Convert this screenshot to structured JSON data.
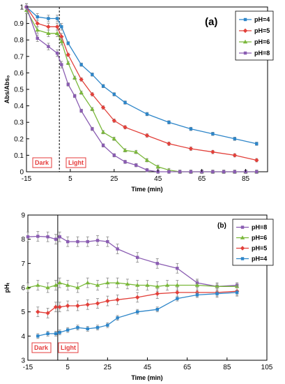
{
  "chart_data": [
    {
      "panel": "(a)",
      "type": "line",
      "xlabel": "Time (min)",
      "ylabel": "Abs/Abs₀",
      "xlim": [
        -15,
        95
      ],
      "ylim": [
        0,
        1
      ],
      "x_ticks": [
        "-15",
        "5",
        "25",
        "45",
        "65",
        "85"
      ],
      "y_ticks": [
        "0",
        "0.1",
        "0.2",
        "0.3",
        "0.4",
        "0.5",
        "0.6",
        "0.7",
        "0.8",
        "0.9",
        "1"
      ],
      "grid": false,
      "legend_position": "top-right",
      "light_on_at": 0,
      "regions": {
        "dark": "Dark",
        "light": "Light"
      },
      "series": [
        {
          "name": "pH=4",
          "color": "#2e86c9",
          "marker": "square",
          "x": [
            -15,
            -10,
            -5,
            -1,
            1,
            4,
            10,
            15,
            20,
            25,
            30,
            40,
            50,
            60,
            70,
            80,
            90
          ],
          "y": [
            1.0,
            0.94,
            0.93,
            0.93,
            0.88,
            0.78,
            0.65,
            0.59,
            0.52,
            0.47,
            0.42,
            0.35,
            0.3,
            0.26,
            0.23,
            0.2,
            0.17
          ],
          "err": [
            0.02,
            0.02,
            0.02,
            0.02,
            0.02,
            0.01,
            0.01,
            0.01,
            0.01,
            0.01,
            0.01,
            0.01,
            0.01,
            0.01,
            0.01,
            0.01,
            0.01
          ]
        },
        {
          "name": "pH=5",
          "color": "#e2403a",
          "marker": "diamond",
          "x": [
            -15,
            -10,
            -5,
            -1,
            1,
            4,
            10,
            15,
            20,
            25,
            30,
            40,
            50,
            60,
            70,
            80,
            90
          ],
          "y": [
            1.0,
            0.9,
            0.88,
            0.88,
            0.82,
            0.71,
            0.56,
            0.47,
            0.39,
            0.31,
            0.27,
            0.22,
            0.17,
            0.14,
            0.12,
            0.1,
            0.07
          ],
          "err": [
            0.02,
            0.02,
            0.02,
            0.02,
            0.02,
            0.01,
            0.01,
            0.01,
            0.01,
            0.01,
            0.01,
            0.01,
            0.01,
            0.01,
            0.01,
            0.01,
            0.01
          ]
        },
        {
          "name": "pH=6",
          "color": "#7ab83a",
          "marker": "triangle",
          "x": [
            -15,
            -10,
            -5,
            -1,
            1,
            4,
            7,
            10,
            15,
            20,
            25,
            30,
            35,
            40,
            45,
            50,
            55,
            60,
            65,
            70,
            75,
            80,
            85,
            90
          ],
          "y": [
            0.98,
            0.86,
            0.84,
            0.84,
            0.79,
            0.66,
            0.57,
            0.48,
            0.38,
            0.24,
            0.2,
            0.13,
            0.12,
            0.07,
            0.03,
            0.01,
            0.0,
            0.0,
            0.0,
            0.0,
            0.0,
            0.0,
            0.0,
            0.0
          ],
          "err": [
            0.02,
            0.02,
            0.02,
            0.02,
            0.02,
            0.01,
            0.01,
            0.01,
            0.01,
            0.01,
            0.01,
            0.01,
            0.01,
            0.01,
            0.01,
            0.01,
            0.01,
            0.01,
            0.01,
            0.01,
            0.01,
            0.01,
            0.01,
            0.01
          ]
        },
        {
          "name": "pH=8",
          "color": "#8a5cb2",
          "marker": "square",
          "x": [
            -15,
            -10,
            -5,
            -1,
            1,
            4,
            7,
            10,
            15,
            20,
            25,
            30,
            35,
            40,
            45,
            50,
            55,
            60,
            65,
            70,
            75,
            80,
            85,
            90
          ],
          "y": [
            1.0,
            0.81,
            0.76,
            0.72,
            0.65,
            0.53,
            0.46,
            0.37,
            0.26,
            0.16,
            0.1,
            0.06,
            0.04,
            0.01,
            0.0,
            0.0,
            0.0,
            0.0,
            0.0,
            0.0,
            0.0,
            0.0,
            0.0,
            0.0
          ],
          "err": [
            0.02,
            0.02,
            0.02,
            0.02,
            0.02,
            0.01,
            0.01,
            0.01,
            0.01,
            0.01,
            0.01,
            0.01,
            0.01,
            0.01,
            0.01,
            0.01,
            0.01,
            0.01,
            0.01,
            0.01,
            0.01,
            0.01,
            0.01,
            0.01
          ]
        }
      ]
    },
    {
      "panel": "(b)",
      "type": "line",
      "xlabel": "Time (min)",
      "ylabel": "pHₜ",
      "xlim": [
        -15,
        105
      ],
      "ylim": [
        3,
        9
      ],
      "x_ticks": [
        "-15",
        "5",
        "25",
        "45",
        "65",
        "85",
        "105"
      ],
      "y_ticks": [
        "3",
        "4",
        "5",
        "6",
        "7",
        "8",
        "9"
      ],
      "grid": false,
      "legend_position": "top-right",
      "light_on_at": 0,
      "regions": {
        "dark": "Dark",
        "light": "Light"
      },
      "series": [
        {
          "name": "pH=8",
          "color": "#8a5cb2",
          "marker": "square",
          "x": [
            -15,
            -10,
            -5,
            -1,
            1,
            5,
            10,
            15,
            20,
            25,
            30,
            40,
            50,
            60,
            70,
            80,
            90
          ],
          "y": [
            8.1,
            8.12,
            8.1,
            8.0,
            8.1,
            7.9,
            7.9,
            7.9,
            7.95,
            7.9,
            7.6,
            7.25,
            7.0,
            6.8,
            6.2,
            6.05,
            6.1
          ],
          "err": [
            0.2,
            0.2,
            0.2,
            0.2,
            0.2,
            0.2,
            0.2,
            0.2,
            0.2,
            0.2,
            0.2,
            0.2,
            0.2,
            0.2,
            0.15,
            0.1,
            0.1
          ]
        },
        {
          "name": "pH=6",
          "color": "#7ab83a",
          "marker": "triangle",
          "x": [
            -15,
            -10,
            -5,
            -1,
            1,
            5,
            10,
            15,
            20,
            25,
            30,
            35,
            40,
            45,
            50,
            55,
            60,
            70,
            80,
            90
          ],
          "y": [
            6.0,
            6.1,
            6.0,
            6.1,
            6.2,
            6.1,
            6.0,
            6.2,
            6.1,
            6.2,
            6.2,
            6.15,
            6.1,
            6.1,
            6.05,
            6.1,
            6.1,
            6.1,
            6.05,
            6.05
          ],
          "err": [
            0.2,
            0.2,
            0.2,
            0.2,
            0.2,
            0.2,
            0.2,
            0.2,
            0.2,
            0.2,
            0.2,
            0.2,
            0.2,
            0.2,
            0.2,
            0.2,
            0.2,
            0.2,
            0.15,
            0.15
          ]
        },
        {
          "name": "pH=5",
          "color": "#e2403a",
          "marker": "diamond",
          "x": [
            -10,
            -5,
            -1,
            1,
            5,
            10,
            15,
            20,
            25,
            30,
            40,
            50,
            60,
            70,
            80,
            90
          ],
          "y": [
            5.0,
            4.95,
            5.2,
            5.2,
            5.25,
            5.25,
            5.3,
            5.35,
            5.45,
            5.5,
            5.6,
            5.75,
            5.8,
            5.8,
            5.8,
            5.85
          ],
          "err": [
            0.2,
            0.2,
            0.2,
            0.2,
            0.2,
            0.2,
            0.2,
            0.2,
            0.2,
            0.2,
            0.2,
            0.2,
            0.2,
            0.2,
            0.2,
            0.2
          ]
        },
        {
          "name": "pH=4",
          "color": "#2e86c9",
          "marker": "square",
          "x": [
            -10,
            -5,
            -1,
            1,
            5,
            10,
            15,
            20,
            25,
            30,
            40,
            50,
            60,
            70,
            80,
            90
          ],
          "y": [
            4.0,
            4.1,
            4.1,
            4.15,
            4.25,
            4.35,
            4.3,
            4.35,
            4.45,
            4.75,
            5.0,
            5.1,
            5.55,
            5.7,
            5.75,
            5.8
          ],
          "err": [
            0.1,
            0.1,
            0.1,
            0.1,
            0.1,
            0.1,
            0.1,
            0.1,
            0.1,
            0.1,
            0.1,
            0.1,
            0.1,
            0.1,
            0.1,
            0.1
          ]
        }
      ]
    }
  ]
}
